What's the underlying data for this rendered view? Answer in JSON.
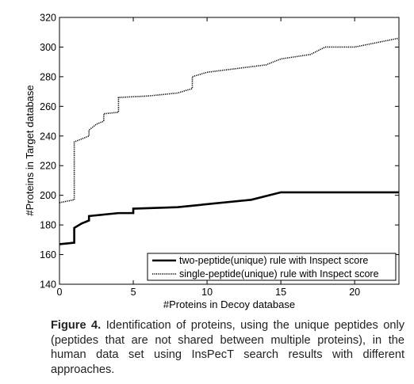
{
  "chart_data": {
    "type": "line",
    "title": "",
    "xlabel": "#Proteins in Decoy database",
    "ylabel": "#Proteins in Target database",
    "xlim": [
      0,
      23
    ],
    "ylim": [
      140,
      320
    ],
    "xticks": [
      0,
      5,
      10,
      15,
      20
    ],
    "yticks": [
      140,
      160,
      180,
      200,
      220,
      240,
      260,
      280,
      300,
      320
    ],
    "grid": false,
    "legend_position": "bottom-right",
    "series": [
      {
        "name": "two-peptide(unique) rule with Inspect score",
        "style": "solid",
        "x": [
          0,
          1,
          1,
          1.5,
          2,
          2,
          3,
          4,
          5,
          5,
          8,
          13,
          15,
          23
        ],
        "y": [
          167,
          168,
          178,
          181,
          183,
          186,
          187,
          188,
          188,
          191,
          192,
          197,
          202,
          202
        ]
      },
      {
        "name": "single-peptide(unique) rule with Inspect score",
        "style": "dotted",
        "x": [
          0,
          1,
          1,
          2,
          2,
          2.5,
          3,
          3,
          4,
          4,
          6,
          8,
          9,
          9,
          10,
          14,
          15,
          17,
          18,
          20,
          23
        ],
        "y": [
          195,
          197,
          236,
          240,
          244,
          248,
          250,
          255,
          256,
          266,
          267,
          269,
          272,
          280,
          283,
          288,
          292,
          295,
          300,
          300,
          306
        ]
      }
    ]
  },
  "caption": {
    "label": "Figure 4.",
    "text": "Identification of proteins, using the unique peptides only (peptides that are not shared between multiple proteins), in the human data set using InsPecT search results with different approaches."
  }
}
